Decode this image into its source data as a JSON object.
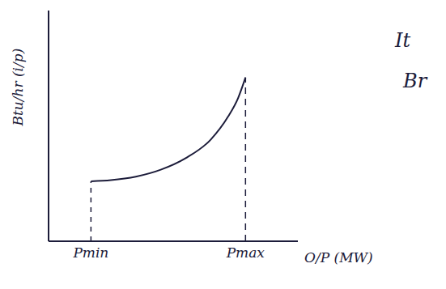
{
  "chart_data": {
    "type": "line",
    "x_label": "O/P (MW)",
    "y_label": "Btu/hr (i/p)",
    "annotations": [
      "It",
      "Br"
    ],
    "x": [
      1.7,
      2.5,
      3.5,
      4.5,
      5.5,
      6.5,
      7.2,
      7.6,
      7.9
    ],
    "values": [
      2.6,
      2.65,
      2.8,
      3.1,
      3.6,
      4.4,
      5.4,
      6.2,
      7.1
    ],
    "color": "#1c1c3a",
    "xlim": [
      0,
      10
    ],
    "ylim": [
      0,
      10
    ],
    "xticks": [
      {
        "value": 1.7,
        "label": "Pmin"
      },
      {
        "value": 7.9,
        "label": "Pmax"
      }
    ],
    "yticks": [],
    "tick_labels": "x",
    "grid": false
  }
}
